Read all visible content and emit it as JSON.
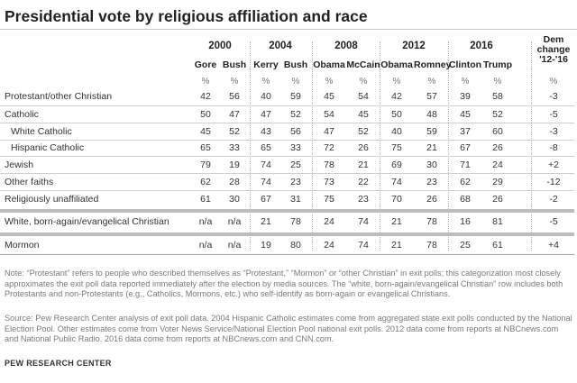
{
  "title": "Presidential vote by religious affiliation and race",
  "years": [
    "2000",
    "2004",
    "2008",
    "2012",
    "2016"
  ],
  "candidates": [
    "Gore",
    "Bush",
    "Kerry",
    "Bush",
    "Obama",
    "McCain",
    "Obama",
    "Romney",
    "Clinton",
    "Trump"
  ],
  "pct_symbol": "%",
  "dem_change_header": "Dem change '12-'16",
  "rows": [
    {
      "label": "Protestant/other Christian",
      "values": [
        "42",
        "56",
        "40",
        "59",
        "45",
        "54",
        "42",
        "57",
        "39",
        "58"
      ],
      "change": "-3"
    },
    {
      "label": "Catholic",
      "values": [
        "50",
        "47",
        "47",
        "52",
        "54",
        "45",
        "50",
        "48",
        "45",
        "52"
      ],
      "change": "-5"
    },
    {
      "label": "White Catholic",
      "values": [
        "45",
        "52",
        "43",
        "56",
        "47",
        "52",
        "40",
        "59",
        "37",
        "60"
      ],
      "change": "-3"
    },
    {
      "label": "Hispanic Catholic",
      "values": [
        "65",
        "33",
        "65",
        "33",
        "72",
        "26",
        "75",
        "21",
        "67",
        "26"
      ],
      "change": "-8"
    },
    {
      "label": "Jewish",
      "values": [
        "79",
        "19",
        "74",
        "25",
        "78",
        "21",
        "69",
        "30",
        "71",
        "24"
      ],
      "change": "+2"
    },
    {
      "label": "Other faiths",
      "values": [
        "62",
        "28",
        "74",
        "23",
        "73",
        "22",
        "74",
        "23",
        "62",
        "29"
      ],
      "change": "-12"
    },
    {
      "label": "Religiously unaffiliated",
      "values": [
        "61",
        "30",
        "67",
        "31",
        "75",
        "23",
        "70",
        "26",
        "68",
        "26"
      ],
      "change": "-2"
    },
    {
      "label": "White, born-again/evangelical Christian",
      "values": [
        "n/a",
        "n/a",
        "21",
        "78",
        "24",
        "74",
        "21",
        "78",
        "16",
        "81"
      ],
      "change": "-5"
    },
    {
      "label": "Mormon",
      "values": [
        "n/a",
        "n/a",
        "19",
        "80",
        "24",
        "74",
        "21",
        "78",
        "25",
        "61"
      ],
      "change": "+4"
    }
  ],
  "note": "Note: “Protestant” refers to people who described themselves as “Protestant,” “Mormon” or “other Christian” in exit polls; this categorization most closely approximates the exit poll data reported immediately after the election by media sources. The “white, born-again/evangelical Christian” row includes both Protestants and non-Protestants (e.g., Catholics, Mormons, etc.) who self-identify as born-again or evangelical Christians.",
  "source": "Source: Pew Research Center analysis of exit poll data. 2004 Hispanic Catholic estimates come from aggregated state exit polls conducted by the National Election Pool. Other estimates come from Voter News Service/National Election Pool national exit polls. 2012 data come from reports at NBCnews.com and National Public Radio. 2016 data come from reports at NBCnews.com and CNN.com.",
  "brand": "PEW RESEARCH CENTER"
}
